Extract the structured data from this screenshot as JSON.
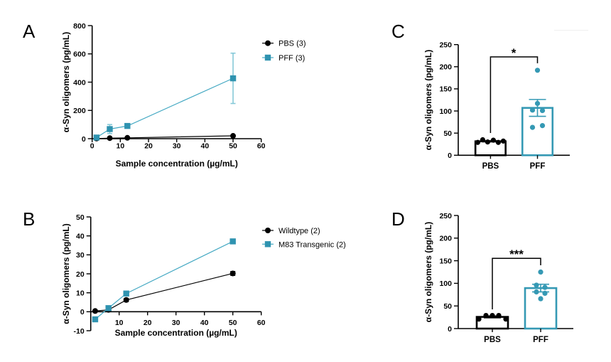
{
  "chart_data": [
    {
      "panel": "A",
      "type": "line",
      "title": "",
      "xlabel": "Sample concentration (µg/mL)",
      "ylabel": "α-Syn oligomers (pg/mL)",
      "xlim": [
        0,
        60
      ],
      "ylim": [
        0,
        800
      ],
      "xticks": [
        0,
        10,
        20,
        30,
        40,
        50,
        60
      ],
      "yticks": [
        0,
        200,
        400,
        600,
        800
      ],
      "grid": false,
      "legend": "top-right",
      "series": [
        {
          "name": "PBS (3)",
          "color": "#000000",
          "marker": "circle",
          "x": [
            1.5625,
            6.25,
            12.5,
            50
          ],
          "y": [
            1,
            4,
            6,
            20
          ],
          "error": [
            0,
            0,
            0,
            0
          ]
        },
        {
          "name": "PFF (3)",
          "color": "#2f93b0",
          "line_color": "#45a9c3",
          "error_color": "#86c9d8",
          "marker": "square",
          "x": [
            1.5625,
            6.25,
            12.5,
            50
          ],
          "y": [
            8,
            68,
            90,
            427
          ],
          "error": [
            4,
            32,
            10,
            178
          ]
        }
      ]
    },
    {
      "panel": "B",
      "type": "line",
      "title": "",
      "xlabel": "Sample concentration (µg/mL)",
      "ylabel": "α-Syn oligomers (pg/mL)",
      "xlim": [
        0,
        60
      ],
      "ylim": [
        -10,
        50
      ],
      "xticks": [
        10,
        20,
        30,
        40,
        50,
        60
      ],
      "yticks": [
        -10,
        0,
        10,
        20,
        30,
        40,
        50
      ],
      "grid": false,
      "legend": "top-right",
      "series": [
        {
          "name": "Wildtype (2)",
          "color": "#000000",
          "marker": "circle",
          "x": [
            1.5625,
            6.25,
            12.5,
            50
          ],
          "y": [
            0.4,
            1.0,
            6.2,
            20.2
          ],
          "error": [
            0.3,
            0.5,
            0.8,
            1.0
          ]
        },
        {
          "name": "M83 Transgenic (2)",
          "color": "#2f93b0",
          "line_color": "#45a9c3",
          "error_color": "#86c9d8",
          "marker": "square",
          "x": [
            1.5625,
            6.25,
            12.5,
            50
          ],
          "y": [
            -4.0,
            1.9,
            9.6,
            37.1
          ],
          "error": [
            0.3,
            0.5,
            0.5,
            0.6
          ]
        }
      ]
    },
    {
      "panel": "C",
      "type": "bar",
      "title": "",
      "xlabel": "",
      "ylabel": "α-Syn oligomers (pg/mL)",
      "categories": [
        "PBS",
        "PFF"
      ],
      "values": [
        31.5,
        107
      ],
      "sem": [
        1.2,
        19
      ],
      "points": [
        [
          29,
          35,
          30,
          34,
          29,
          32
        ],
        [
          192,
          117,
          102,
          101,
          63,
          67
        ]
      ],
      "colors": [
        "#000000",
        "#3599b4"
      ],
      "ylim": [
        0,
        250
      ],
      "yticks": [
        0,
        50,
        100,
        150,
        200,
        250
      ],
      "grid": false,
      "significance": "*"
    },
    {
      "panel": "D",
      "type": "bar",
      "title": "",
      "xlabel": "",
      "ylabel": "α-Syn oligomers (pg/mL)",
      "categories": [
        "PBS",
        "PFF"
      ],
      "values": [
        25.8,
        89.5
      ],
      "sem": [
        2.0,
        8.4
      ],
      "points": [
        [
          21,
          29,
          29,
          29,
          21
        ],
        [
          125,
          96,
          91,
          81,
          78,
          66
        ]
      ],
      "colors": [
        "#000000",
        "#3599b4"
      ],
      "ylim": [
        0,
        250
      ],
      "yticks": [
        0,
        50,
        100,
        150,
        200,
        250
      ],
      "grid": false,
      "significance": "***"
    }
  ]
}
